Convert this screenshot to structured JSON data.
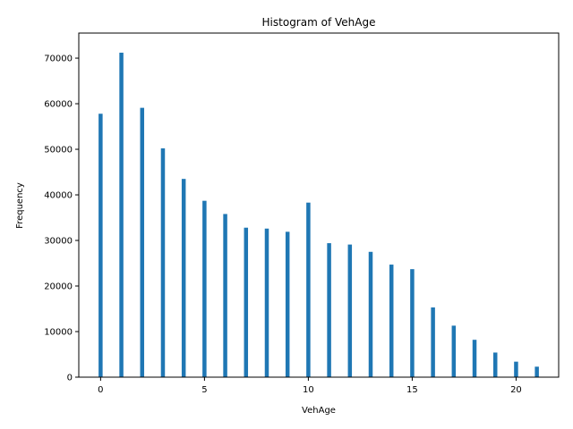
{
  "chart_data": {
    "type": "bar",
    "title": "Histogram of VehAge",
    "xlabel": "VehAge",
    "ylabel": "Frequency",
    "x": [
      0,
      1,
      2,
      3,
      4,
      5,
      6,
      7,
      8,
      9,
      10,
      11,
      12,
      13,
      14,
      15,
      16,
      17,
      18,
      19,
      20,
      21
    ],
    "values": [
      57800,
      71200,
      59100,
      50200,
      43500,
      38700,
      35800,
      32800,
      32600,
      31900,
      38300,
      29400,
      29100,
      27500,
      24700,
      23700,
      15300,
      11300,
      8200,
      5400,
      3400,
      2300
    ],
    "xlim": [
      -1.05,
      22.05
    ],
    "ylim": [
      0,
      75500
    ],
    "xticks": [
      0,
      5,
      10,
      15,
      20
    ],
    "yticks": [
      0,
      10000,
      20000,
      30000,
      40000,
      50000,
      60000,
      70000
    ],
    "grid": false,
    "bar_color": "#1f77b4"
  }
}
